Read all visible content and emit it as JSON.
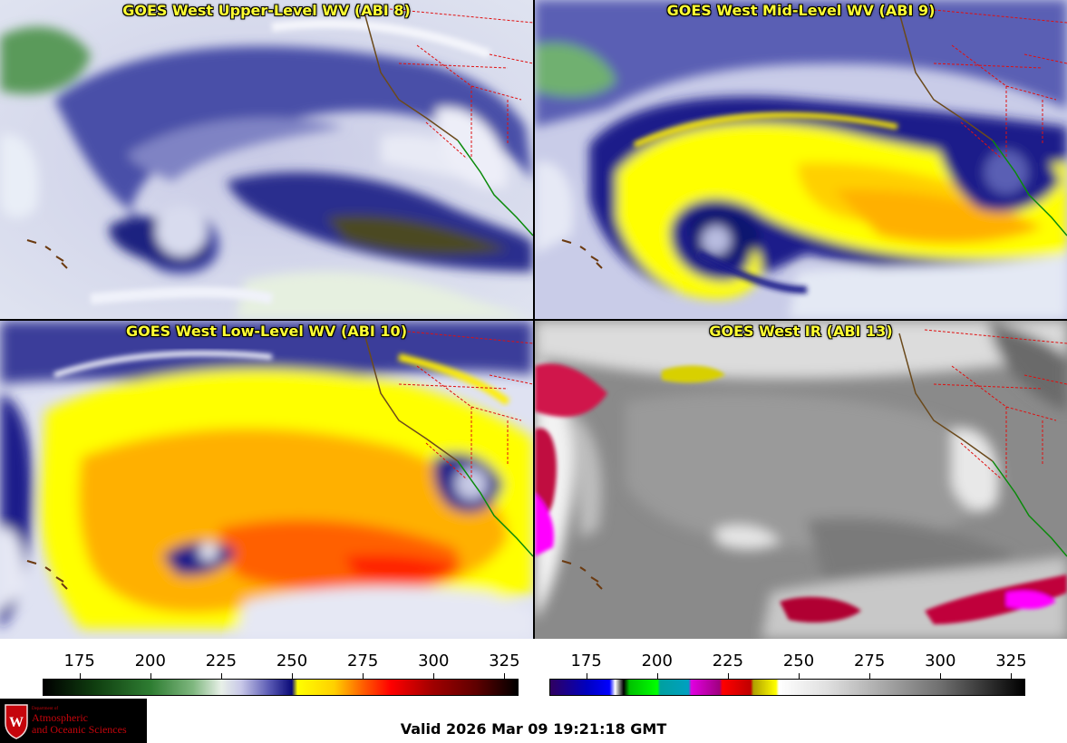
{
  "panels": {
    "upper": {
      "title": "GOES West Upper-Level WV (ABI 8)"
    },
    "mid": {
      "title": "GOES West Mid-Level WV (ABI 9)"
    },
    "low": {
      "title": "GOES West Low-Level WV (ABI 10)"
    },
    "ir": {
      "title": "GOES West IR (ABI 13)"
    }
  },
  "colorbars": {
    "wv": {
      "ticks": [
        "175",
        "200",
        "225",
        "250",
        "275",
        "300",
        "325"
      ],
      "tick_values": [
        175,
        200,
        225,
        250,
        275,
        300,
        325
      ],
      "range": [
        162,
        330
      ],
      "stops": [
        {
          "v": 162,
          "c": "#000000"
        },
        {
          "v": 180,
          "c": "#0f3d0f"
        },
        {
          "v": 200,
          "c": "#2e7d32"
        },
        {
          "v": 215,
          "c": "#7fb77f"
        },
        {
          "v": 225,
          "c": "#e8f0e8"
        },
        {
          "v": 232,
          "c": "#c8c8e8"
        },
        {
          "v": 242,
          "c": "#5a5ab4"
        },
        {
          "v": 250,
          "c": "#0a0a78"
        },
        {
          "v": 252,
          "c": "#ffff00"
        },
        {
          "v": 265,
          "c": "#ffd000"
        },
        {
          "v": 275,
          "c": "#ff6000"
        },
        {
          "v": 285,
          "c": "#ff0000"
        },
        {
          "v": 300,
          "c": "#a00000"
        },
        {
          "v": 315,
          "c": "#600000"
        },
        {
          "v": 330,
          "c": "#000000"
        }
      ]
    },
    "ir": {
      "ticks": [
        "175",
        "200",
        "225",
        "250",
        "275",
        "300",
        "325"
      ],
      "tick_values": [
        175,
        200,
        225,
        250,
        275,
        300,
        325
      ],
      "range": [
        162,
        330
      ],
      "stops": [
        {
          "v": 162,
          "c": "#300060"
        },
        {
          "v": 175,
          "c": "#0000c0"
        },
        {
          "v": 183,
          "c": "#0000ff"
        },
        {
          "v": 185,
          "c": "#ffffff"
        },
        {
          "v": 188,
          "c": "#000000"
        },
        {
          "v": 190,
          "c": "#00c000"
        },
        {
          "v": 200,
          "c": "#00ff00"
        },
        {
          "v": 201,
          "c": "#00a0a0"
        },
        {
          "v": 211,
          "c": "#00a0c0"
        },
        {
          "v": 212,
          "c": "#e000e0"
        },
        {
          "v": 222,
          "c": "#a00080"
        },
        {
          "v": 223,
          "c": "#ff0000"
        },
        {
          "v": 233,
          "c": "#c00000"
        },
        {
          "v": 234,
          "c": "#b0a000"
        },
        {
          "v": 242,
          "c": "#ffff00"
        },
        {
          "v": 243,
          "c": "#ffffff"
        },
        {
          "v": 260,
          "c": "#e0e0e0"
        },
        {
          "v": 300,
          "c": "#707070"
        },
        {
          "v": 330,
          "c": "#000000"
        }
      ]
    }
  },
  "logo": {
    "dept": "Department of",
    "line1": "Atmospheric",
    "line2": "and Oceanic Sciences"
  },
  "valid_time": "Valid 2026 Mar 09 19:21:18 GMT"
}
